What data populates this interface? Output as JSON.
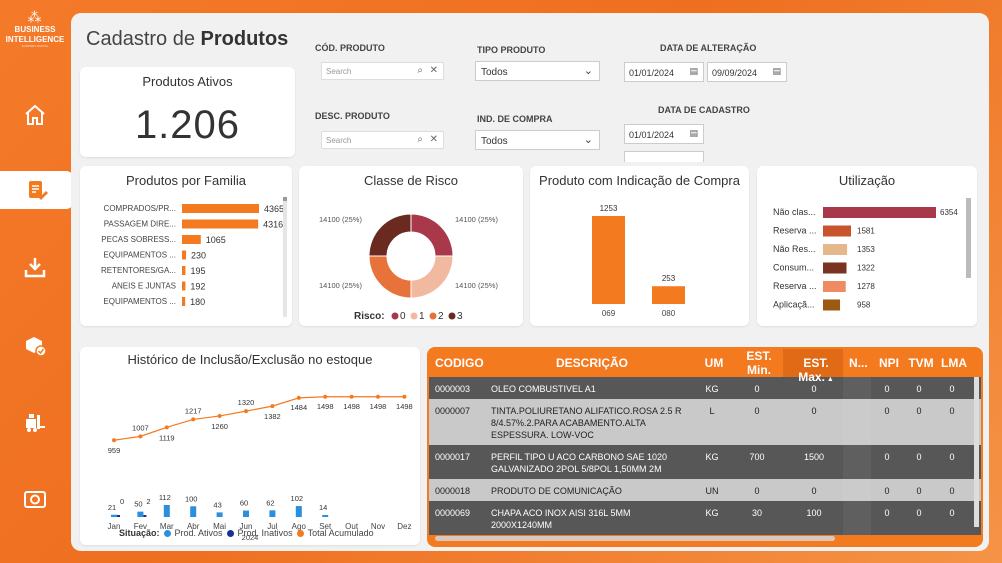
{
  "logo": {
    "line1": "BUSINESS",
    "line2": "INTELLIGENCE",
    "line3": "SUPPORT DIGITAL"
  },
  "page_title_prefix": "Cadastro de ",
  "page_title_bold": "Produtos",
  "kpi": {
    "title": "Produtos Ativos",
    "value": "1.206"
  },
  "filters": {
    "cod_produto": {
      "label": "CÓD. PRODUTO",
      "placeholder": "Search"
    },
    "desc_produto": {
      "label": "DESC. PRODUTO",
      "placeholder": "Search"
    },
    "tipo_produto": {
      "label": "TIPO PRODUTO",
      "value": "Todos"
    },
    "ind_compra": {
      "label": "IND. DE COMPRA",
      "value": "Todos"
    },
    "data_alteracao": {
      "label": "DATA DE ALTERAÇÃO",
      "from": "01/01/2024",
      "to": "09/09/2024"
    },
    "data_cadastro": {
      "label": "DATA DE CADASTRO",
      "from": "01/01/2024"
    }
  },
  "colors": {
    "accent": "#f47a20",
    "dark_row": "#575757",
    "light_row": "#c9c9c9"
  },
  "chart_data": [
    {
      "type": "bar",
      "title": "Produtos por Familia",
      "categories": [
        "COMPRADOS/PR...",
        "PASSAGEM DIRE...",
        "PECAS SOBRESS...",
        "EQUIPAMENTOS ...",
        "RETENTORES/GA...",
        "ANEIS E JUNTAS",
        "EQUIPAMENTOS ..."
      ],
      "values": [
        4365,
        4316,
        1065,
        230,
        195,
        192,
        180
      ],
      "orientation": "horizontal",
      "color": "#f47a20"
    },
    {
      "type": "pie",
      "title": "Classe de Risco",
      "legend_title": "Risco:",
      "labels": [
        "0",
        "1",
        "2",
        "3"
      ],
      "values": [
        14100,
        14100,
        14100,
        14100
      ],
      "slice_labels": [
        "14100 (25%)",
        "14100 (25%)",
        "14100 (25%)",
        "14100 (25%)"
      ],
      "colors": [
        "#a8384a",
        "#f2b9a1",
        "#e8733a",
        "#6b2a1f"
      ]
    },
    {
      "type": "bar",
      "title": "Produto com Indicação de Compra",
      "categories": [
        "069",
        "080"
      ],
      "values": [
        1253,
        253
      ],
      "color": "#f47a20"
    },
    {
      "type": "bar",
      "title": "Utilização",
      "orientation": "horizontal",
      "categories": [
        "Não clas...",
        "Reserva ...",
        "Não Res...",
        "Consum...",
        "Reserva ...",
        "Aplicaçã..."
      ],
      "values": [
        6354,
        1581,
        1353,
        1322,
        1278,
        958
      ],
      "colors": [
        "#a8384a",
        "#c8542e",
        "#e4b88a",
        "#7a3320",
        "#f08a62",
        "#9a5a12"
      ]
    },
    {
      "type": "line",
      "title": "Histórico de Inclusão/Exclusão no estoque",
      "x": [
        "Jan",
        "Fev",
        "Mar",
        "Abr",
        "Mai",
        "Jun",
        "Jul",
        "Ago",
        "Set",
        "Out",
        "Nov",
        "Dez"
      ],
      "year_label": "2024",
      "legend_title": "Situação:",
      "series": [
        {
          "name": "Prod. Ativos",
          "values": [
            21,
            50,
            112,
            100,
            43,
            60,
            62,
            102,
            14,
            null,
            null,
            null
          ],
          "color": "#2b8fe0"
        },
        {
          "name": "Prod. Inativos",
          "values": [
            0,
            2,
            null,
            null,
            null,
            null,
            null,
            null,
            null,
            null,
            null,
            null
          ],
          "color": "#1a2f9a"
        },
        {
          "name": "Total Acumulado",
          "values": [
            959,
            1007,
            1119,
            1217,
            1260,
            1320,
            1382,
            1484,
            1498,
            1498,
            1498,
            1498
          ],
          "color": "#f47a20"
        }
      ]
    }
  ],
  "table": {
    "headers": [
      "CODIGO",
      "DESCRIÇÃO",
      "UM",
      "EST. Min.",
      "EST. Max.",
      "N...",
      "NPI",
      "TVM",
      "LMA"
    ],
    "rows": [
      [
        "0000003",
        "OLEO COMBUSTIVEL A1",
        "KG",
        "0",
        "0",
        "",
        "0",
        "0",
        "0"
      ],
      [
        "0000007",
        "TINTA.POLIURETANO ALIFATICO.ROSA 2.5 R 8/4.57%.2.PARA ACABAMENTO.ALTA ESPESSURA. LOW-VOC",
        "L",
        "0",
        "0",
        "",
        "0",
        "0",
        "0"
      ],
      [
        "0000017",
        "PERFIL TIPO U ACO CARBONO SAE 1020 GALVANIZADO 2POL 5/8POL 1,50MM 2M",
        "KG",
        "700",
        "1500",
        "",
        "0",
        "0",
        "0"
      ],
      [
        "0000018",
        "PRODUTO DE COMUNICAÇÃO",
        "UN",
        "0",
        "0",
        "",
        "0",
        "0",
        "0"
      ],
      [
        "0000069",
        "CHAPA ACO INOX AISI 316L 5MM 2000X1240MM",
        "KG",
        "30",
        "100",
        "",
        "0",
        "0",
        "0"
      ]
    ]
  }
}
